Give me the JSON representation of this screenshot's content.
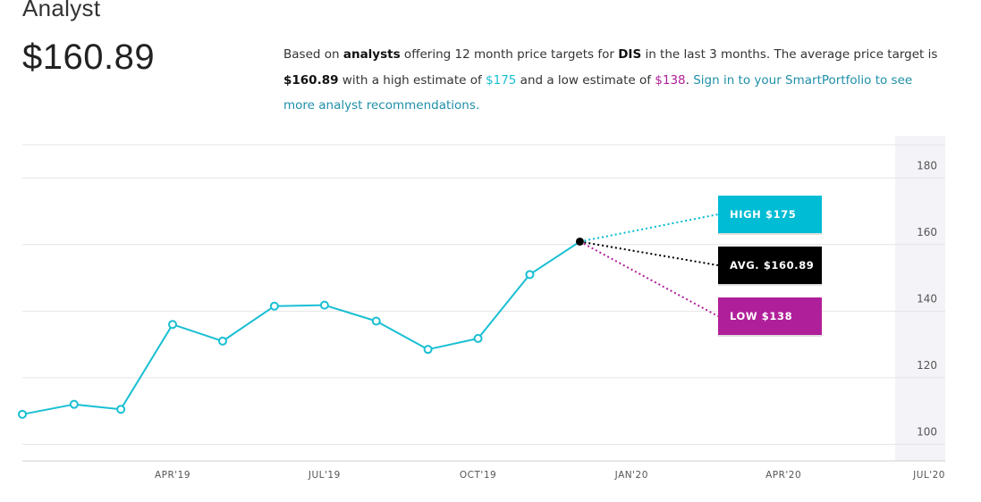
{
  "header": {
    "title": "Analyst",
    "price": "$160.89"
  },
  "summary": {
    "p1": "Based on ",
    "b1": "analysts",
    "p2": " offering 12 month price targets for ",
    "b2": "DIS",
    "p3": " in the last 3 months. The average price target is ",
    "avg": "$160.89",
    "p4": " with a high estimate of ",
    "high": "$175",
    "p5": " and a low estimate of ",
    "low": "$138",
    "p6": ". ",
    "link": "Sign in to your SmartPortfolio to see more analyst recommendations."
  },
  "colors": {
    "line": "#19bfd3",
    "high": "#00bcd4",
    "avg": "#000000",
    "low": "#b01f9a",
    "grid": "#e4e4e4",
    "band": "#f4f3f8"
  },
  "chart_data": {
    "type": "line",
    "ylim": [
      95,
      190
    ],
    "xlim": [
      "2019-01-01",
      "2020-07-01"
    ],
    "y_ticks": [
      100,
      120,
      140,
      160,
      180
    ],
    "x_ticks": [
      {
        "date": "2019-04-01",
        "label": "APR'19"
      },
      {
        "date": "2019-07-01",
        "label": "JUL'19"
      },
      {
        "date": "2019-10-01",
        "label": "OCT'19"
      },
      {
        "date": "2020-01-01",
        "label": "JAN'20"
      },
      {
        "date": "2020-04-01",
        "label": "APR'20"
      },
      {
        "date": "2020-07-01",
        "label": "JUL'20"
      }
    ],
    "series": [
      {
        "values": [
          {
            "x": "2019-01-01",
            "y": 109
          },
          {
            "x": "2019-02-01",
            "y": 112
          },
          {
            "x": "2019-03-01",
            "y": 110.5
          },
          {
            "x": "2019-04-01",
            "y": 136
          },
          {
            "x": "2019-05-01",
            "y": 131
          },
          {
            "x": "2019-06-01",
            "y": 141.5
          },
          {
            "x": "2019-07-01",
            "y": 141.8
          },
          {
            "x": "2019-08-01",
            "y": 137
          },
          {
            "x": "2019-09-01",
            "y": 128.5
          },
          {
            "x": "2019-10-01",
            "y": 131.8
          },
          {
            "x": "2019-11-01",
            "y": 151
          },
          {
            "x": "2019-12-01",
            "y": 160.89
          }
        ]
      }
    ],
    "projections": [
      {
        "key": "high",
        "label": "HIGH $175",
        "value": 175
      },
      {
        "key": "avg",
        "label": "AVG. $160.89",
        "value": 160.89
      },
      {
        "key": "low",
        "label": "LOW $138",
        "value": 138
      }
    ]
  }
}
